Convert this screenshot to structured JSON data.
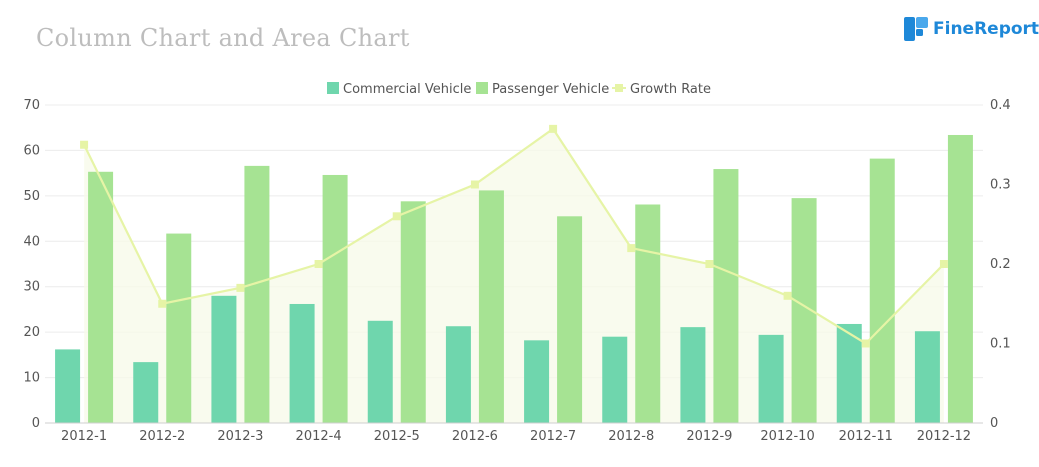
{
  "header": {
    "title": "Column Chart and Area Chart",
    "brand": "FineReport",
    "brand_icon": "finereport-logo-icon"
  },
  "chart_data": {
    "type": "bar",
    "categories": [
      "2012-1",
      "2012-2",
      "2012-3",
      "2012-4",
      "2012-5",
      "2012-6",
      "2012-7",
      "2012-8",
      "2012-9",
      "2012-10",
      "2012-11",
      "2012-12"
    ],
    "series": [
      {
        "name": "Commercial Vehicle",
        "type": "bar",
        "axis": "left",
        "color": "#6fd6ad",
        "values": [
          16.2,
          13.4,
          28.0,
          26.2,
          22.5,
          21.3,
          18.2,
          19.0,
          21.1,
          19.4,
          21.8,
          20.2
        ]
      },
      {
        "name": "Passenger Vehicle",
        "type": "bar",
        "axis": "left",
        "color": "#a6e393",
        "values": [
          55.3,
          41.7,
          56.6,
          54.6,
          48.8,
          51.2,
          45.5,
          48.1,
          55.9,
          49.5,
          58.2,
          63.4
        ]
      },
      {
        "name": "Growth Rate",
        "type": "area-line",
        "axis": "right",
        "color": "#e6f4a6",
        "values": [
          0.35,
          0.15,
          0.17,
          0.2,
          0.26,
          0.3,
          0.37,
          0.22,
          0.2,
          0.16,
          0.1,
          0.2
        ]
      }
    ],
    "y_left": {
      "min": 0,
      "max": 70,
      "ticks": [
        "0",
        "10",
        "20",
        "30",
        "40",
        "50",
        "60",
        "70"
      ]
    },
    "y_right": {
      "min": 0,
      "max": 0.4,
      "ticks": [
        "0",
        "0.1",
        "0.2",
        "0.3",
        "0.4"
      ]
    },
    "legend_position": "top-center",
    "grid": true
  }
}
